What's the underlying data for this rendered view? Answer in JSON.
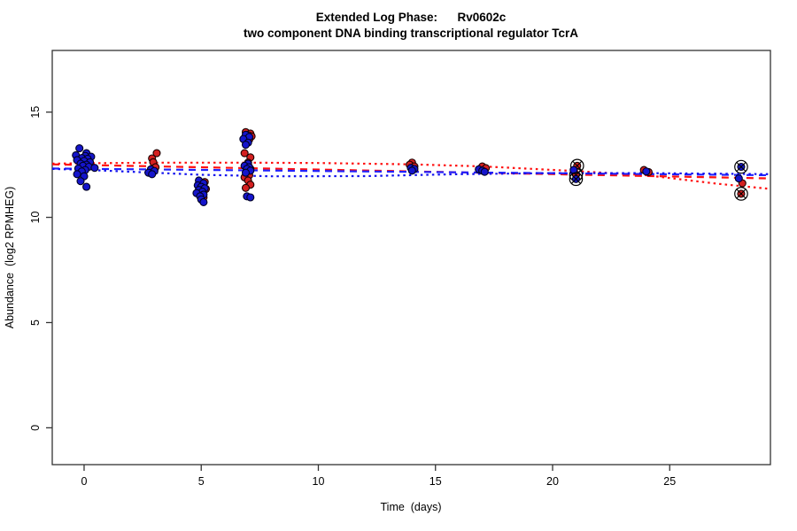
{
  "chart_data": {
    "type": "scatter",
    "title_line1": "Extended Log Phase:      Rv0602c",
    "title_line2": "two component DNA binding transcriptional regulator TcrA",
    "xlabel": "Time  (days)",
    "ylabel": "Abundance  (log2 RPMHEG)",
    "x_ticks": [
      0,
      5,
      10,
      15,
      20,
      25
    ],
    "y_ticks": [
      0,
      5,
      10,
      15
    ],
    "xlim": [
      -1.36,
      29.3
    ],
    "ylim": [
      -1.75,
      17.93
    ],
    "grid": false,
    "legend": "none",
    "flagged_marker": "black-circle-with-x",
    "series": [
      {
        "name": "condition-red",
        "color": "#d42020",
        "outline": "#1a0000",
        "points": [
          [
            3.1,
            13.05,
            0
          ],
          [
            2.9,
            12.8,
            0
          ],
          [
            2.95,
            12.62,
            0
          ],
          [
            3.05,
            12.38,
            0
          ],
          [
            5.15,
            11.68,
            0
          ],
          [
            5.2,
            11.35,
            0
          ],
          [
            4.95,
            11.22,
            0
          ],
          [
            5.1,
            10.95,
            0
          ],
          [
            6.9,
            14.05,
            0
          ],
          [
            7.1,
            13.98,
            0
          ],
          [
            7.0,
            13.9,
            0
          ],
          [
            7.15,
            13.85,
            0
          ],
          [
            6.85,
            13.78,
            0
          ],
          [
            7.05,
            13.7,
            0
          ],
          [
            6.95,
            13.6,
            0
          ],
          [
            6.85,
            13.05,
            0
          ],
          [
            7.1,
            12.85,
            0
          ],
          [
            7.0,
            12.6,
            0
          ],
          [
            6.9,
            12.45,
            0
          ],
          [
            7.1,
            12.3,
            0
          ],
          [
            6.95,
            12.15,
            0
          ],
          [
            7.05,
            12.0,
            0
          ],
          [
            6.85,
            11.9,
            0
          ],
          [
            7.0,
            11.75,
            0
          ],
          [
            7.1,
            11.55,
            0
          ],
          [
            6.9,
            11.4,
            0
          ],
          [
            14.0,
            12.6,
            0
          ],
          [
            13.9,
            12.5,
            0
          ],
          [
            14.1,
            12.42,
            0
          ],
          [
            17.0,
            12.42,
            0
          ],
          [
            17.15,
            12.34,
            0
          ],
          [
            21.05,
            12.45,
            1
          ],
          [
            21.0,
            12.02,
            1
          ],
          [
            23.9,
            12.25,
            0
          ],
          [
            24.1,
            12.15,
            0
          ],
          [
            28.1,
            11.62,
            0
          ],
          [
            28.05,
            11.12,
            1
          ]
        ]
      },
      {
        "name": "condition-blue",
        "color": "#1515cc",
        "outline": "#000022",
        "points": [
          [
            -0.2,
            13.28,
            0
          ],
          [
            0.1,
            13.05,
            0
          ],
          [
            -0.35,
            12.95,
            0
          ],
          [
            0.05,
            12.92,
            0
          ],
          [
            0.3,
            12.88,
            0
          ],
          [
            -0.1,
            12.82,
            0
          ],
          [
            0.15,
            12.78,
            0
          ],
          [
            -0.3,
            12.72,
            0
          ],
          [
            0.0,
            12.68,
            0
          ],
          [
            0.25,
            12.62,
            0
          ],
          [
            -0.15,
            12.55,
            0
          ],
          [
            0.1,
            12.5,
            0
          ],
          [
            -0.05,
            12.45,
            0
          ],
          [
            0.2,
            12.4,
            0
          ],
          [
            -0.25,
            12.32,
            0
          ],
          [
            0.45,
            12.35,
            0
          ],
          [
            0.05,
            12.25,
            0
          ],
          [
            -0.1,
            12.18,
            0
          ],
          [
            -0.3,
            12.05,
            0
          ],
          [
            0.0,
            11.95,
            0
          ],
          [
            -0.15,
            11.72,
            0
          ],
          [
            0.1,
            11.45,
            0
          ],
          [
            2.85,
            12.28,
            0
          ],
          [
            3.0,
            12.2,
            0
          ],
          [
            2.75,
            12.12,
            0
          ],
          [
            2.9,
            12.05,
            0
          ],
          [
            4.9,
            11.75,
            0
          ],
          [
            5.1,
            11.62,
            0
          ],
          [
            4.85,
            11.52,
            0
          ],
          [
            5.0,
            11.45,
            0
          ],
          [
            5.15,
            11.38,
            0
          ],
          [
            4.9,
            11.3,
            0
          ],
          [
            5.05,
            11.22,
            0
          ],
          [
            4.8,
            11.15,
            0
          ],
          [
            5.1,
            11.08,
            0
          ],
          [
            4.95,
            11.0,
            0
          ],
          [
            5.0,
            10.85,
            0
          ],
          [
            5.1,
            10.72,
            0
          ],
          [
            6.9,
            13.92,
            0
          ],
          [
            7.05,
            13.82,
            0
          ],
          [
            6.8,
            13.72,
            0
          ],
          [
            7.0,
            13.55,
            0
          ],
          [
            6.9,
            13.45,
            0
          ],
          [
            7.0,
            12.55,
            0
          ],
          [
            6.85,
            12.45,
            0
          ],
          [
            7.05,
            12.38,
            0
          ],
          [
            6.95,
            12.3,
            0
          ],
          [
            7.1,
            12.22,
            0
          ],
          [
            6.9,
            12.12,
            0
          ],
          [
            6.95,
            11.0,
            0
          ],
          [
            7.1,
            10.95,
            0
          ],
          [
            13.95,
            12.35,
            0
          ],
          [
            14.1,
            12.3,
            0
          ],
          [
            14.0,
            12.22,
            0
          ],
          [
            16.85,
            12.28,
            0
          ],
          [
            17.0,
            12.22,
            0
          ],
          [
            17.1,
            12.16,
            0
          ],
          [
            20.9,
            12.25,
            0
          ],
          [
            21.0,
            11.82,
            1
          ],
          [
            24.0,
            12.18,
            0
          ],
          [
            28.05,
            12.4,
            1
          ],
          [
            27.95,
            11.85,
            0
          ]
        ]
      }
    ],
    "trend_lines": [
      {
        "name": "red-smooth-fit",
        "color": "#ff1010",
        "dash": "dotted",
        "x": [
          -1.36,
          0,
          3,
          7,
          10,
          14,
          17,
          21,
          24,
          27,
          29.3
        ],
        "y": [
          12.55,
          12.57,
          12.6,
          12.6,
          12.58,
          12.52,
          12.42,
          12.2,
          12.0,
          11.6,
          11.35
        ]
      },
      {
        "name": "red-linear-fit",
        "color": "#ff1010",
        "dash": "dashed",
        "x": [
          -1.36,
          29.3
        ],
        "y": [
          12.52,
          11.85
        ]
      },
      {
        "name": "blue-linear-fit",
        "color": "#2222ff",
        "dash": "dashed",
        "x": [
          -1.36,
          29.3
        ],
        "y": [
          12.32,
          12.0
        ]
      },
      {
        "name": "blue-smooth-fit",
        "color": "#1111ee",
        "dash": "dotted",
        "x": [
          -1.36,
          0,
          3,
          5,
          8,
          12,
          16,
          20,
          24,
          29.3
        ],
        "y": [
          12.3,
          12.26,
          12.12,
          12.02,
          11.95,
          11.96,
          12.05,
          12.1,
          12.1,
          12.05
        ]
      }
    ]
  }
}
